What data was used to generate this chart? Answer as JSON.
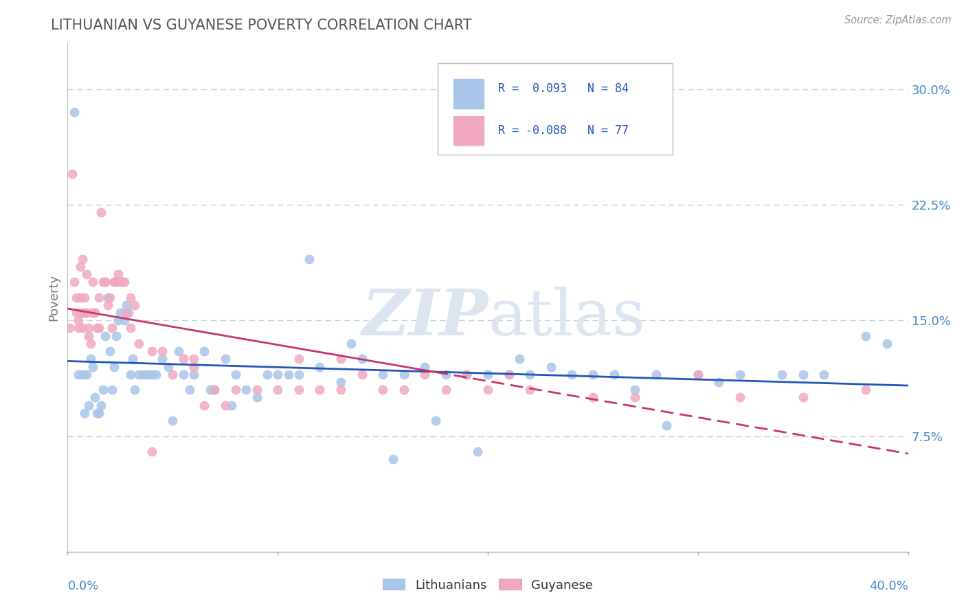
{
  "title": "LITHUANIAN VS GUYANESE POVERTY CORRELATION CHART",
  "source": "Source: ZipAtlas.com",
  "ylabel": "Poverty",
  "yticks": [
    0.075,
    0.15,
    0.225,
    0.3
  ],
  "ytick_labels": [
    "7.5%",
    "15.0%",
    "22.5%",
    "30.0%"
  ],
  "xlim": [
    0.0,
    0.4
  ],
  "ylim": [
    0.0,
    0.33
  ],
  "legend_r1": "R =  0.093",
  "legend_n1": "N = 84",
  "legend_r2": "R = -0.088",
  "legend_n2": "N = 77",
  "color_blue": "#a8c4e8",
  "color_pink": "#f0a8c0",
  "line_blue": "#2255bb",
  "line_pink": "#cc3366",
  "background_color": "#ffffff",
  "grid_color": "#c0cfe0",
  "title_color": "#555555",
  "source_color": "#999999",
  "tick_color": "#4488cc",
  "blue_scatter_x": [
    0.003,
    0.007,
    0.01,
    0.012,
    0.013,
    0.015,
    0.016,
    0.017,
    0.018,
    0.019,
    0.02,
    0.021,
    0.022,
    0.023,
    0.024,
    0.025,
    0.027,
    0.028,
    0.03,
    0.032,
    0.034,
    0.036,
    0.04,
    0.042,
    0.045,
    0.05,
    0.055,
    0.06,
    0.065,
    0.07,
    0.075,
    0.08,
    0.085,
    0.09,
    0.095,
    0.1,
    0.105,
    0.11,
    0.12,
    0.13,
    0.14,
    0.15,
    0.16,
    0.17,
    0.18,
    0.19,
    0.2,
    0.21,
    0.22,
    0.23,
    0.24,
    0.25,
    0.26,
    0.28,
    0.3,
    0.32,
    0.34,
    0.36,
    0.38,
    0.005,
    0.008,
    0.009,
    0.011,
    0.014,
    0.026,
    0.029,
    0.031,
    0.038,
    0.048,
    0.053,
    0.058,
    0.068,
    0.078,
    0.115,
    0.135,
    0.175,
    0.215,
    0.27,
    0.31,
    0.35,
    0.39,
    0.155,
    0.195,
    0.285
  ],
  "blue_scatter_y": [
    0.285,
    0.115,
    0.095,
    0.12,
    0.1,
    0.09,
    0.095,
    0.105,
    0.14,
    0.165,
    0.13,
    0.105,
    0.12,
    0.14,
    0.15,
    0.155,
    0.15,
    0.16,
    0.115,
    0.105,
    0.115,
    0.115,
    0.115,
    0.115,
    0.125,
    0.085,
    0.115,
    0.115,
    0.13,
    0.105,
    0.125,
    0.115,
    0.105,
    0.1,
    0.115,
    0.115,
    0.115,
    0.115,
    0.12,
    0.11,
    0.125,
    0.115,
    0.115,
    0.12,
    0.115,
    0.115,
    0.115,
    0.115,
    0.115,
    0.12,
    0.115,
    0.115,
    0.115,
    0.115,
    0.115,
    0.115,
    0.115,
    0.115,
    0.14,
    0.115,
    0.09,
    0.115,
    0.125,
    0.09,
    0.175,
    0.155,
    0.125,
    0.115,
    0.12,
    0.13,
    0.105,
    0.105,
    0.095,
    0.19,
    0.135,
    0.085,
    0.125,
    0.105,
    0.11,
    0.115,
    0.135,
    0.06,
    0.065,
    0.082
  ],
  "pink_scatter_x": [
    0.001,
    0.002,
    0.003,
    0.004,
    0.005,
    0.005,
    0.006,
    0.006,
    0.007,
    0.007,
    0.008,
    0.008,
    0.009,
    0.01,
    0.01,
    0.011,
    0.012,
    0.013,
    0.014,
    0.015,
    0.016,
    0.017,
    0.018,
    0.019,
    0.02,
    0.021,
    0.022,
    0.023,
    0.025,
    0.027,
    0.028,
    0.03,
    0.032,
    0.034,
    0.04,
    0.045,
    0.05,
    0.055,
    0.06,
    0.07,
    0.08,
    0.09,
    0.1,
    0.11,
    0.12,
    0.13,
    0.14,
    0.15,
    0.16,
    0.17,
    0.18,
    0.19,
    0.2,
    0.21,
    0.22,
    0.25,
    0.27,
    0.3,
    0.32,
    0.35,
    0.38,
    0.004,
    0.006,
    0.009,
    0.012,
    0.015,
    0.018,
    0.022,
    0.03,
    0.04,
    0.065,
    0.075,
    0.11,
    0.13,
    0.06,
    0.024,
    0.026
  ],
  "pink_scatter_y": [
    0.145,
    0.245,
    0.175,
    0.165,
    0.15,
    0.145,
    0.165,
    0.155,
    0.19,
    0.145,
    0.155,
    0.165,
    0.155,
    0.145,
    0.14,
    0.135,
    0.155,
    0.155,
    0.145,
    0.165,
    0.22,
    0.175,
    0.175,
    0.16,
    0.165,
    0.145,
    0.175,
    0.175,
    0.175,
    0.175,
    0.155,
    0.145,
    0.16,
    0.135,
    0.13,
    0.13,
    0.115,
    0.125,
    0.125,
    0.105,
    0.105,
    0.105,
    0.105,
    0.105,
    0.105,
    0.105,
    0.115,
    0.105,
    0.105,
    0.115,
    0.105,
    0.115,
    0.105,
    0.115,
    0.105,
    0.1,
    0.1,
    0.115,
    0.1,
    0.1,
    0.105,
    0.155,
    0.185,
    0.18,
    0.175,
    0.145,
    0.175,
    0.175,
    0.165,
    0.065,
    0.095,
    0.095,
    0.125,
    0.125,
    0.12,
    0.18,
    0.175
  ]
}
